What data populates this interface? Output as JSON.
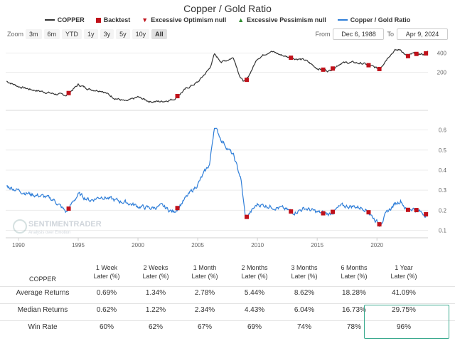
{
  "title": "Copper / Gold Ratio",
  "legend": [
    {
      "label": "COPPER",
      "color": "#333333",
      "shape": "line"
    },
    {
      "label": "Backtest",
      "color": "#c0111a",
      "shape": "square"
    },
    {
      "label": "Excessive Optimism null",
      "color": "#c0111a",
      "shape": "triangle"
    },
    {
      "label": "Excessive Pessimism null",
      "color": "#2e8b2e",
      "shape": "triangle"
    },
    {
      "label": "Copper / Gold Ratio",
      "color": "#2f7ed8",
      "shape": "line"
    }
  ],
  "zoom": {
    "label": "Zoom",
    "options": [
      "3m",
      "6m",
      "YTD",
      "1y",
      "3y",
      "5y",
      "10y",
      "All"
    ],
    "active": "All"
  },
  "range": {
    "from_label": "From",
    "from": "Dec 6, 1988",
    "to_label": "To",
    "to": "Apr 9, 2024"
  },
  "watermark": {
    "name": "SENTIMENTRADER",
    "tagline": "Analysis over Emotion"
  },
  "chart_data": [
    {
      "type": "line",
      "title": "COPPER",
      "yscale": "log",
      "ylim": [
        55,
        550
      ],
      "yticks": [
        200,
        400
      ],
      "xlim": [
        1988.93,
        2024.27
      ],
      "x": [
        1989.0,
        1990.0,
        1991.0,
        1992.0,
        1993.0,
        1994.0,
        1995.0,
        1996.0,
        1997.0,
        1998.0,
        1999.0,
        2000.0,
        2001.0,
        2002.0,
        2003.0,
        2004.0,
        2005.0,
        2006.0,
        2006.4,
        2007.0,
        2008.0,
        2008.6,
        2009.0,
        2010.0,
        2011.1,
        2012.0,
        2013.0,
        2014.0,
        2015.0,
        2016.0,
        2017.0,
        2018.0,
        2019.0,
        2020.2,
        2021.0,
        2021.5,
        2022.0,
        2022.5,
        2023.0,
        2024.0,
        2024.27
      ],
      "y": [
        145,
        120,
        108,
        100,
        92,
        88,
        128,
        108,
        103,
        80,
        70,
        82,
        70,
        70,
        76,
        110,
        140,
        230,
        380,
        290,
        340,
        160,
        140,
        330,
        430,
        370,
        330,
        310,
        230,
        210,
        280,
        285,
        270,
        225,
        360,
        440,
        450,
        350,
        390,
        380,
        420
      ],
      "backtest_years": [
        1994.2,
        2003.3,
        2009.1,
        2012.8,
        2015.5,
        2016.3,
        2019.3,
        2020.2,
        2022.6,
        2023.3,
        2024.1
      ]
    },
    {
      "type": "line",
      "title": "Copper / Gold Ratio",
      "ylim": [
        0.07,
        0.68
      ],
      "yticks": [
        0.1,
        0.2,
        0.3,
        0.4,
        0.5,
        0.6
      ],
      "xlim": [
        1988.93,
        2024.27
      ],
      "xticks": [
        1990,
        1995,
        2000,
        2005,
        2010,
        2015,
        2020
      ],
      "x": [
        1989.0,
        1990.0,
        1991.0,
        1992.0,
        1993.0,
        1994.0,
        1995.0,
        1996.0,
        1997.0,
        1998.0,
        1999.0,
        2000.0,
        2001.0,
        2002.0,
        2003.0,
        2004.0,
        2005.0,
        2006.0,
        2006.4,
        2007.0,
        2008.0,
        2008.6,
        2009.0,
        2010.0,
        2011.1,
        2012.0,
        2013.0,
        2014.0,
        2015.0,
        2016.0,
        2017.0,
        2018.0,
        2019.0,
        2020.2,
        2021.0,
        2021.5,
        2022.0,
        2022.5,
        2023.0,
        2024.0,
        2024.27
      ],
      "y": [
        0.32,
        0.3,
        0.28,
        0.27,
        0.25,
        0.19,
        0.28,
        0.25,
        0.27,
        0.25,
        0.24,
        0.22,
        0.21,
        0.22,
        0.19,
        0.26,
        0.33,
        0.43,
        0.62,
        0.55,
        0.47,
        0.36,
        0.16,
        0.23,
        0.22,
        0.21,
        0.19,
        0.21,
        0.19,
        0.18,
        0.22,
        0.22,
        0.21,
        0.13,
        0.2,
        0.23,
        0.25,
        0.2,
        0.21,
        0.18,
        0.18
      ],
      "backtest_years": [
        1994.2,
        2003.3,
        2009.1,
        2012.8,
        2015.5,
        2016.3,
        2019.3,
        2020.2,
        2022.6,
        2023.3,
        2024.1
      ]
    },
    {
      "type": "table",
      "title": "COPPER",
      "columns": [
        "1 Week Later (%)",
        "2 Weeks Later (%)",
        "1 Month Later (%)",
        "2 Months Later (%)",
        "3 Months Later (%)",
        "6 Months Later (%)",
        "1 Year Later (%)"
      ],
      "rows": [
        {
          "label": "Average Returns",
          "values": [
            "0.69%",
            "1.34%",
            "2.78%",
            "5.44%",
            "8.62%",
            "18.28%",
            "41.09%"
          ]
        },
        {
          "label": "Median Returns",
          "values": [
            "0.62%",
            "1.22%",
            "2.34%",
            "4.43%",
            "6.04%",
            "16.73%",
            "29.75%"
          ]
        },
        {
          "label": "Win Rate",
          "values": [
            "60%",
            "62%",
            "67%",
            "69%",
            "74%",
            "78%",
            "96%"
          ]
        }
      ]
    }
  ],
  "table": {
    "corner": "COPPER",
    "headers": [
      {
        "l1": "1 Week",
        "l2": "Later (%)"
      },
      {
        "l1": "2 Weeks",
        "l2": "Later (%)"
      },
      {
        "l1": "1 Month",
        "l2": "Later (%)"
      },
      {
        "l1": "2 Months",
        "l2": "Later (%)"
      },
      {
        "l1": "3 Months",
        "l2": "Later (%)"
      },
      {
        "l1": "6 Months",
        "l2": "Later (%)"
      },
      {
        "l1": "1 Year",
        "l2": "Later (%)"
      }
    ],
    "rows": [
      {
        "label": "Average Returns",
        "values": [
          "0.69%",
          "1.34%",
          "2.78%",
          "5.44%",
          "8.62%",
          "18.28%",
          "41.09%"
        ]
      },
      {
        "label": "Median Returns",
        "values": [
          "0.62%",
          "1.22%",
          "2.34%",
          "4.43%",
          "6.04%",
          "16.73%",
          "29.75%"
        ]
      },
      {
        "label": "Win Rate",
        "values": [
          "60%",
          "62%",
          "67%",
          "69%",
          "74%",
          "78%",
          "96%"
        ]
      }
    ]
  },
  "colors": {
    "copper": "#333333",
    "ratio": "#2f7ed8",
    "backtest": "#c0111a",
    "highlight": "#3aaa8f"
  }
}
